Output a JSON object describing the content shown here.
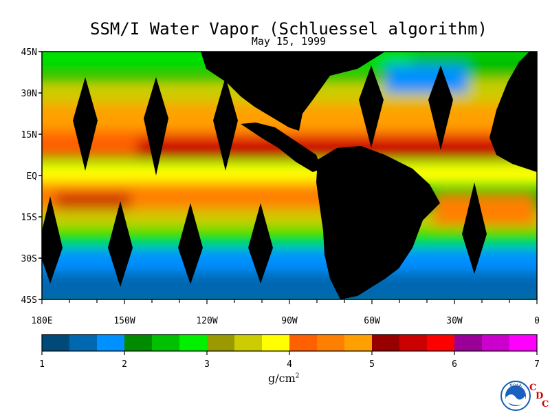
{
  "title": "SSM/I Water Vapor (Schluessel algorithm)",
  "subtitle": "May 15, 1999",
  "map": {
    "lat_labels": [
      "45N",
      "30N",
      "15N",
      "EQ",
      "15S",
      "30S",
      "45S"
    ],
    "lon_labels": [
      "180E",
      "150W",
      "120W",
      "90W",
      "60W",
      "30W",
      "0"
    ],
    "lat_range": [
      -45,
      45
    ],
    "lon_range": [
      -180,
      0
    ],
    "projection": "equirectangular",
    "no_data_color": "#000000"
  },
  "colorbar": {
    "unit_base": "g/cm",
    "unit_exp": "2",
    "tick_labels": [
      "1",
      "2",
      "3",
      "4",
      "5",
      "6",
      "7"
    ],
    "min": 1,
    "max": 7,
    "colors": [
      "#004a7a",
      "#0068b0",
      "#0090ff",
      "#008a00",
      "#00c000",
      "#00f000",
      "#9a9a00",
      "#cccc00",
      "#ffff00",
      "#ff6000",
      "#ff8000",
      "#ffa000",
      "#980000",
      "#cc0000",
      "#ff0000",
      "#9a0098",
      "#cc00cc",
      "#ff00ff"
    ]
  },
  "logo": {
    "agency_text": "NOAA",
    "org_letters": [
      "C",
      "D",
      "C"
    ]
  }
}
